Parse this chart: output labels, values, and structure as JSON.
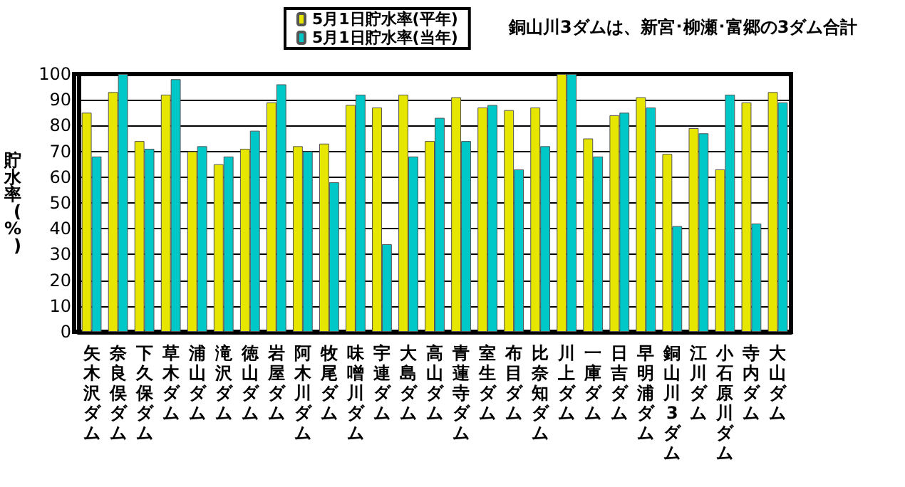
{
  "chart_data": {
    "type": "bar",
    "title": "銅山川3ダムは、新宮･柳瀬･富郷の3ダム合計",
    "ylabel": "貯水率(%)",
    "categories": [
      "矢木沢ダム",
      "奈良俣ダム",
      "下久保ダム",
      "草木ダム",
      "浦山ダム",
      "滝沢ダム",
      "徳山ダム",
      "岩屋ダム",
      "阿木川ダム",
      "牧尾ダム",
      "味噌川ダム",
      "宇連ダム",
      "大島ダム",
      "高山ダム",
      "青蓮寺ダム",
      "室生ダム",
      "布目ダム",
      "比奈知ダム",
      "川上ダム",
      "一庫ダム",
      "日吉ダム",
      "早明浦ダム",
      "銅山川3ダム",
      "江川ダム",
      "小石原川ダム",
      "寺内ダム",
      "大山ダム"
    ],
    "series": [
      {
        "name": "5月1日貯水率(平年)",
        "color": "#e6e600",
        "values": [
          85,
          93,
          74,
          92,
          70,
          65,
          71,
          89,
          72,
          73,
          88,
          87,
          92,
          74,
          91,
          87,
          86,
          87,
          100,
          75,
          84,
          91,
          69,
          79,
          63,
          89,
          93
        ]
      },
      {
        "name": "5月1日貯水率(当年)",
        "color": "#00c8c8",
        "values": [
          68,
          100,
          71,
          98,
          72,
          68,
          78,
          96,
          70,
          58,
          92,
          34,
          68,
          83,
          74,
          88,
          63,
          72,
          100,
          68,
          85,
          87,
          41,
          77,
          92,
          42,
          89
        ]
      }
    ],
    "ylim": [
      0,
      100
    ],
    "yticks": [
      0,
      10,
      20,
      30,
      40,
      50,
      60,
      70,
      80,
      90,
      100
    ],
    "grid": "y",
    "legend": "top left"
  }
}
